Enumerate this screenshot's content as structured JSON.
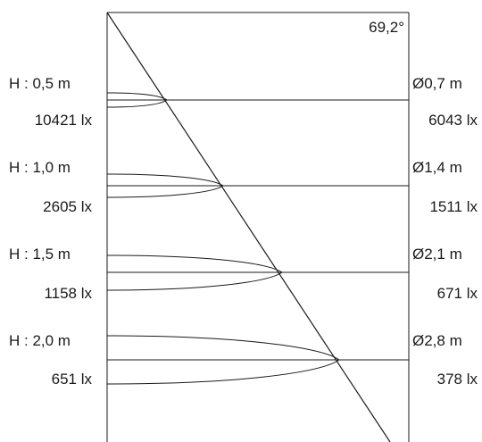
{
  "beam_angle": "69,2°",
  "levels": [
    {
      "height": "H : 0,5 m",
      "diameter": "Ø0,7 m",
      "lux_center": "10421 lx",
      "lux_edge": "6043 lx"
    },
    {
      "height": "H : 1,0 m",
      "diameter": "Ø1,4 m",
      "lux_center": "2605 lx",
      "lux_edge": "1511 lx"
    },
    {
      "height": "H : 1,5 m",
      "diameter": "Ø2,1 m",
      "lux_center": "1158 lx",
      "lux_edge": "671 lx"
    },
    {
      "height": "H : 2,0 m",
      "diameter": "Ø2,8 m",
      "lux_center": "651 lx",
      "lux_edge": "378 lx"
    }
  ]
}
